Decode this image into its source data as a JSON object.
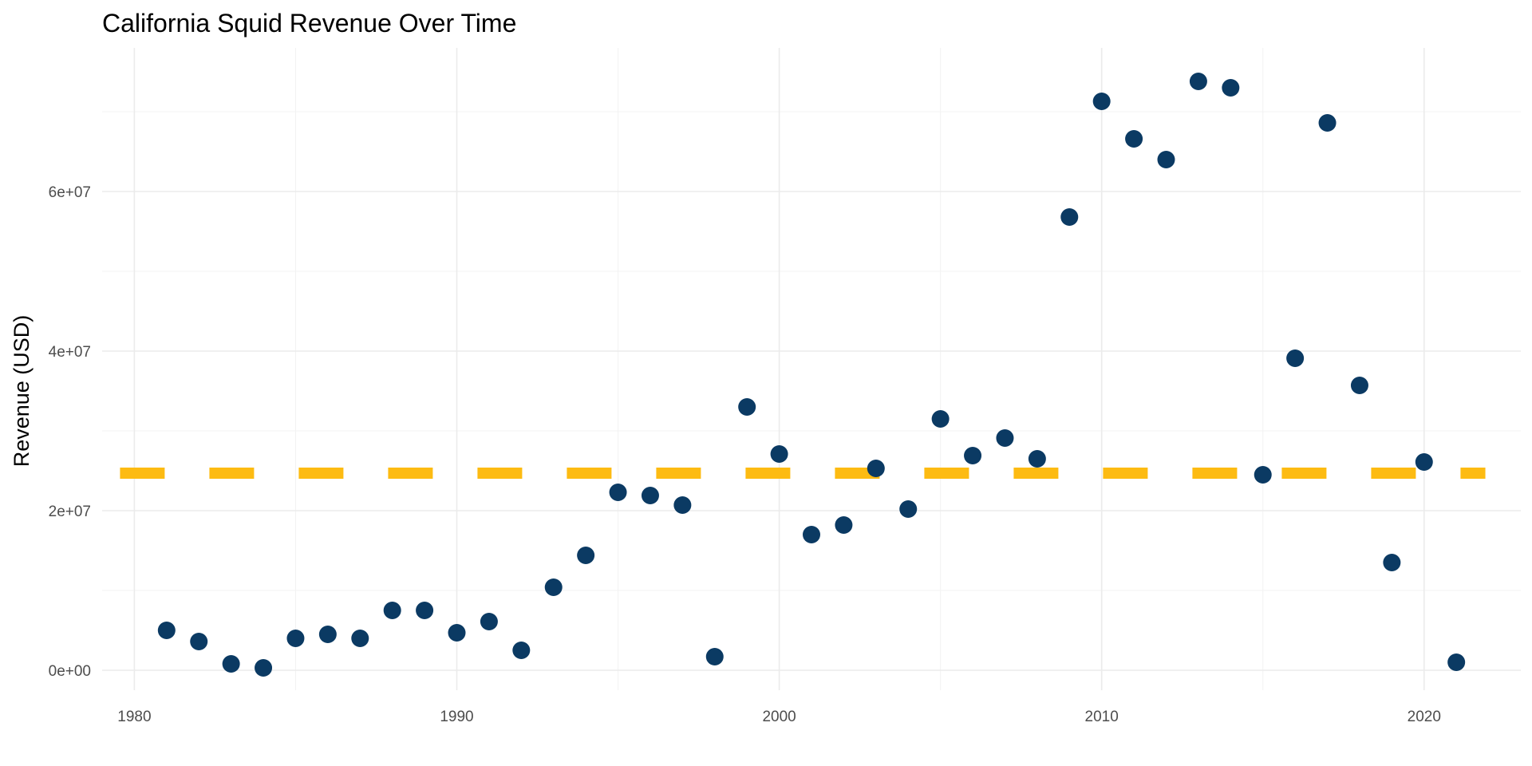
{
  "chart_data": {
    "type": "scatter",
    "title": "California Squid Revenue Over Time",
    "xlabel": "",
    "ylabel": "Revenue (USD)",
    "xlim": [
      1979.0,
      2023.0
    ],
    "ylim": [
      -2500000,
      78000000
    ],
    "x_ticks": [
      1980,
      1990,
      2000,
      2010,
      2020
    ],
    "x_tick_labels": [
      "1980",
      "1990",
      "2000",
      "2010",
      "2020"
    ],
    "y_ticks": [
      0,
      20000000,
      40000000,
      60000000
    ],
    "y_tick_labels": [
      "0e+00",
      "2e+07",
      "4e+07",
      "6e+07"
    ],
    "grid": true,
    "legend": "none",
    "point_color": "#0b3a63",
    "reference_line": {
      "style": "dashed",
      "color": "#fdbb12",
      "y": 24700000
    },
    "series": [
      {
        "x": [
          1981,
          1982,
          1983,
          1984,
          1985,
          1986,
          1987,
          1988,
          1989,
          1990,
          1991,
          1992,
          1993,
          1994,
          1995,
          1996,
          1997,
          1998,
          1999,
          2000,
          2001,
          2002,
          2003,
          2004,
          2005,
          2006,
          2007,
          2008,
          2009,
          2010,
          2011,
          2012,
          2013,
          2014,
          2015,
          2016,
          2017,
          2018,
          2019,
          2020,
          2021
        ],
        "y": [
          5000000,
          3600000,
          800000,
          300000,
          4000000,
          4500000,
          4000000,
          7500000,
          7500000,
          4700000,
          6100000,
          2500000,
          10400000,
          14400000,
          22300000,
          21900000,
          20700000,
          1700000,
          33000000,
          27100000,
          17000000,
          18200000,
          25300000,
          20200000,
          31500000,
          26900000,
          29100000,
          26500000,
          56800000,
          71300000,
          66600000,
          64000000,
          73800000,
          73000000,
          24500000,
          39100000,
          68600000,
          35700000,
          13500000,
          26100000,
          1000000
        ]
      }
    ]
  }
}
